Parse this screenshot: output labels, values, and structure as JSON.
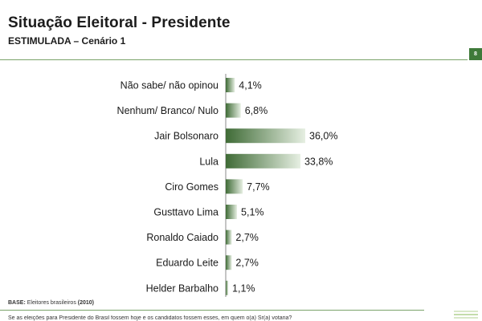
{
  "header": {
    "title": "Situação Eleitoral - Presidente",
    "subtitle": "ESTIMULADA – Cenário 1",
    "page_number": "8"
  },
  "footer": {
    "base_label": "BASE:",
    "base_text": "Eleitores brasileiros",
    "base_year": "(2010)",
    "question": "Se as eleições para Presidente do Brasil fossem hoje e os candidatos fossem esses, em quem o(a) Sr(a) votaria?"
  },
  "colors": {
    "bar_dark": "#3f6b36",
    "bar_light": "#e6efe2",
    "accent": "#3f7a3a"
  },
  "chart_data": {
    "type": "bar",
    "orientation": "horizontal",
    "categories": [
      "Não sabe/ não opinou",
      "Nenhum/ Branco/ Nulo",
      "Jair Bolsonaro",
      "Lula",
      "Ciro Gomes",
      "Gusttavo Lima",
      "Ronaldo Caiado",
      "Eduardo Leite",
      "Helder Barbalho"
    ],
    "values": [
      4.1,
      6.8,
      36.0,
      33.8,
      7.7,
      5.1,
      2.7,
      2.7,
      1.1
    ],
    "value_labels": [
      "4,1%",
      "6,8%",
      "36,0%",
      "33,8%",
      "7,7%",
      "5,1%",
      "2,7%",
      "2,7%",
      "1,1%"
    ],
    "xlim": [
      0,
      40
    ],
    "grid": false,
    "legend": "none"
  }
}
